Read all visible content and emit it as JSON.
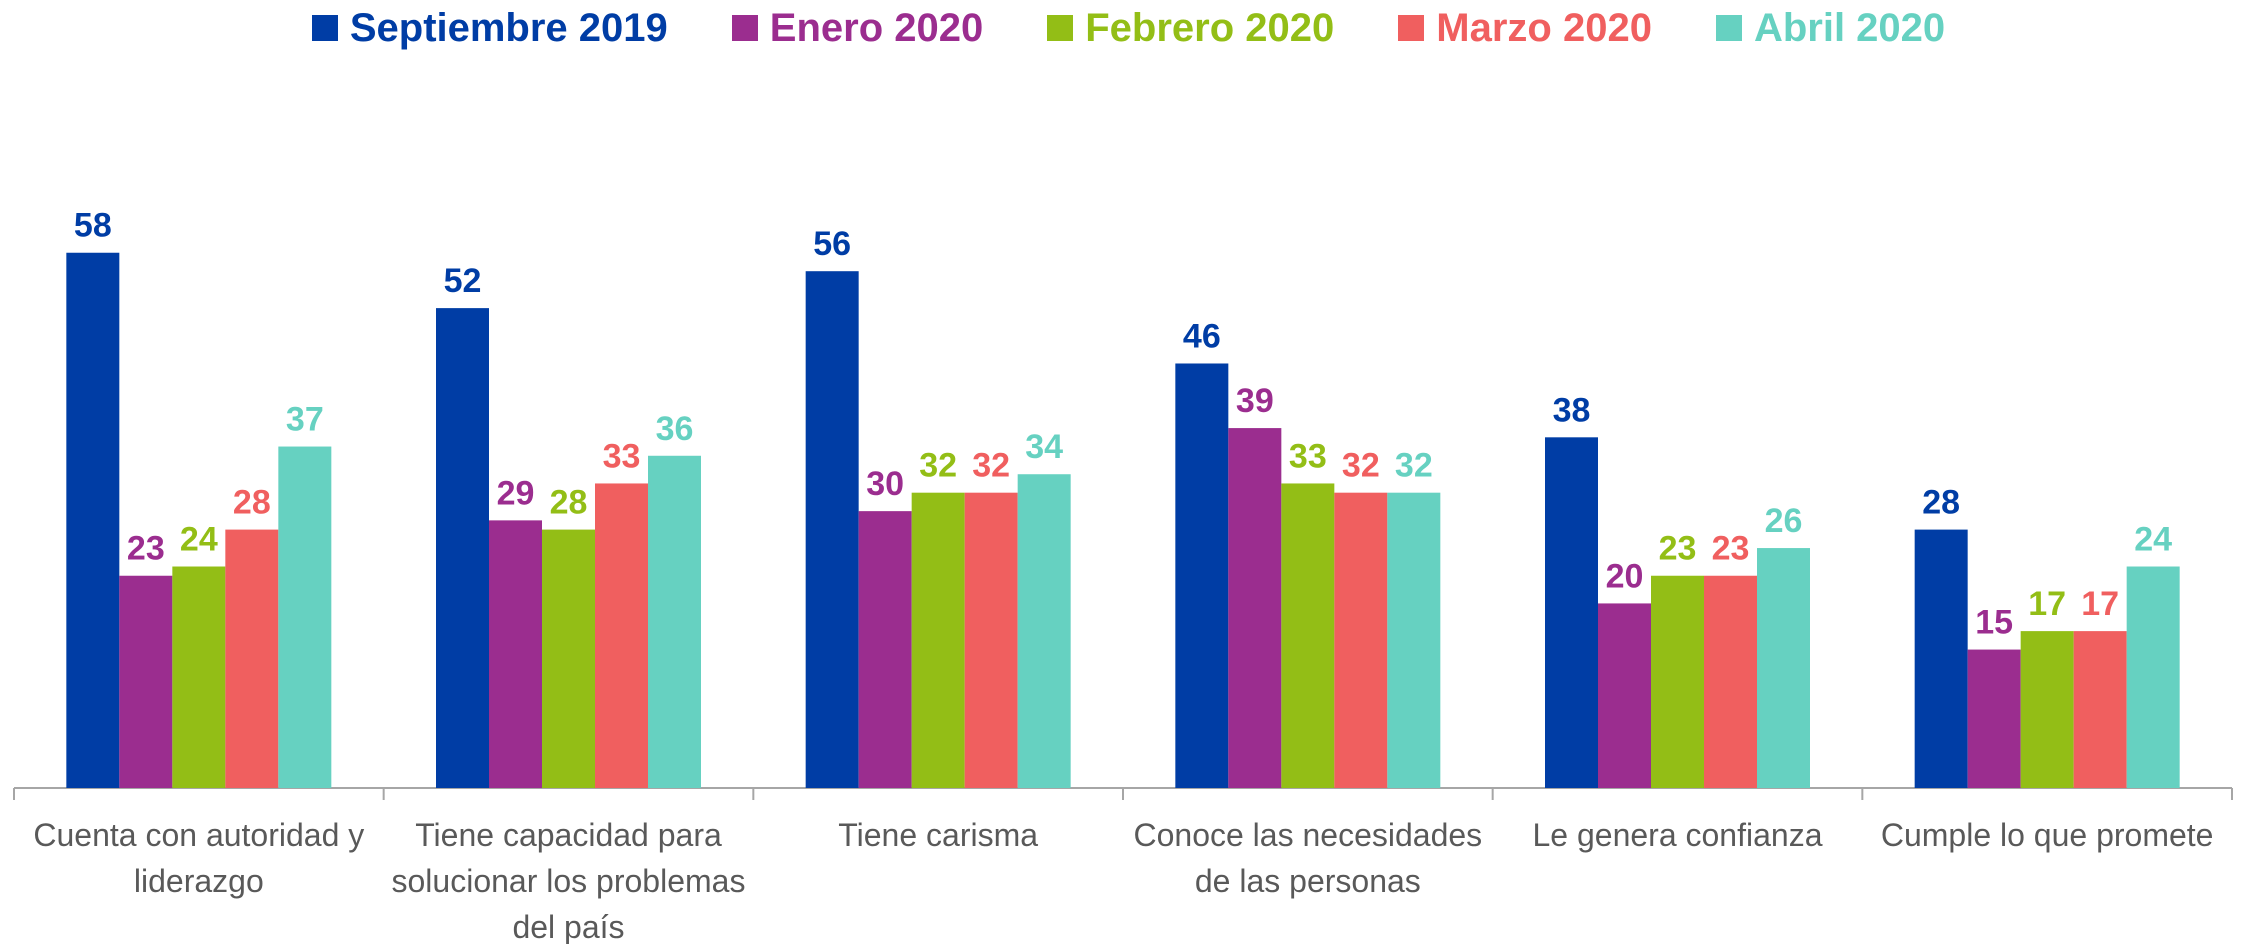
{
  "chart_data": {
    "type": "bar",
    "categories": [
      "Cuenta con autoridad y liderazgo",
      "Tiene capacidad para solucionar los problemas del país",
      "Tiene carisma",
      "Conoce las necesidades de las personas",
      "Le genera confianza",
      "Cumple lo que promete"
    ],
    "series": [
      {
        "name": "Septiembre 2019",
        "color": "#003da5",
        "values": [
          58,
          52,
          56,
          46,
          38,
          28
        ]
      },
      {
        "name": "Enero 2020",
        "color": "#9b2d8f",
        "values": [
          23,
          29,
          30,
          39,
          20,
          15
        ]
      },
      {
        "name": "Febrero 2020",
        "color": "#93be16",
        "values": [
          24,
          28,
          32,
          33,
          23,
          17
        ]
      },
      {
        "name": "Marzo 2020",
        "color": "#f05f5f",
        "values": [
          28,
          33,
          32,
          32,
          23,
          17
        ]
      },
      {
        "name": "Abril 2020",
        "color": "#66d1c1",
        "values": [
          37,
          36,
          34,
          32,
          26,
          24
        ]
      }
    ],
    "ylim": [
      0,
      70
    ],
    "legend": "top"
  }
}
